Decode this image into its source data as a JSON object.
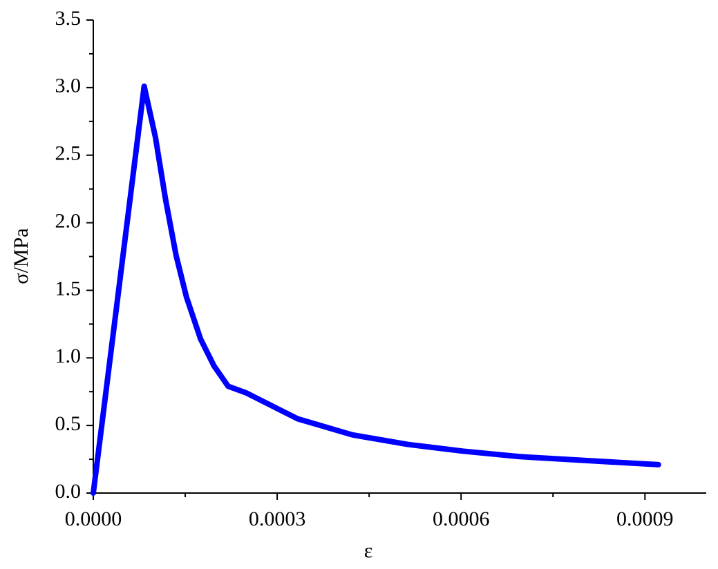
{
  "chart_data": {
    "type": "line",
    "x_label": "ε",
    "y_label": "σ/MPa",
    "xlim": [
      0,
      0.001
    ],
    "ylim": [
      0,
      3.5
    ],
    "xticks": [
      {
        "value": 0,
        "label": "0.0000"
      },
      {
        "value": 0.0003,
        "label": "0.0003"
      },
      {
        "value": 0.0006,
        "label": "0.0006"
      },
      {
        "value": 0.0009,
        "label": "0.0009"
      }
    ],
    "yticks": [
      {
        "value": 0,
        "label": "0.0"
      },
      0.5,
      {
        "value": 1,
        "label": "1.0"
      },
      1.5,
      {
        "value": 2,
        "label": "2.0"
      },
      2.5,
      {
        "value": 3,
        "label": "3.0"
      },
      3.5
    ],
    "series": [
      {
        "color": "#0000ff",
        "x": [
          0,
          8.3e-05,
          0.0001015,
          0.000118,
          0.000135,
          0.000152,
          0.000175,
          0.000197,
          0.00022,
          0.00025,
          0.000333,
          0.000423,
          0.000513,
          0.000603,
          0.000694,
          0.000806,
          0.000922
        ],
        "values": [
          0,
          3.01,
          2.63,
          2.17,
          1.76,
          1.45,
          1.14,
          0.94,
          0.79,
          0.74,
          0.55,
          0.43,
          0.36,
          0.31,
          0.27,
          0.24,
          0.21
        ]
      }
    ]
  }
}
